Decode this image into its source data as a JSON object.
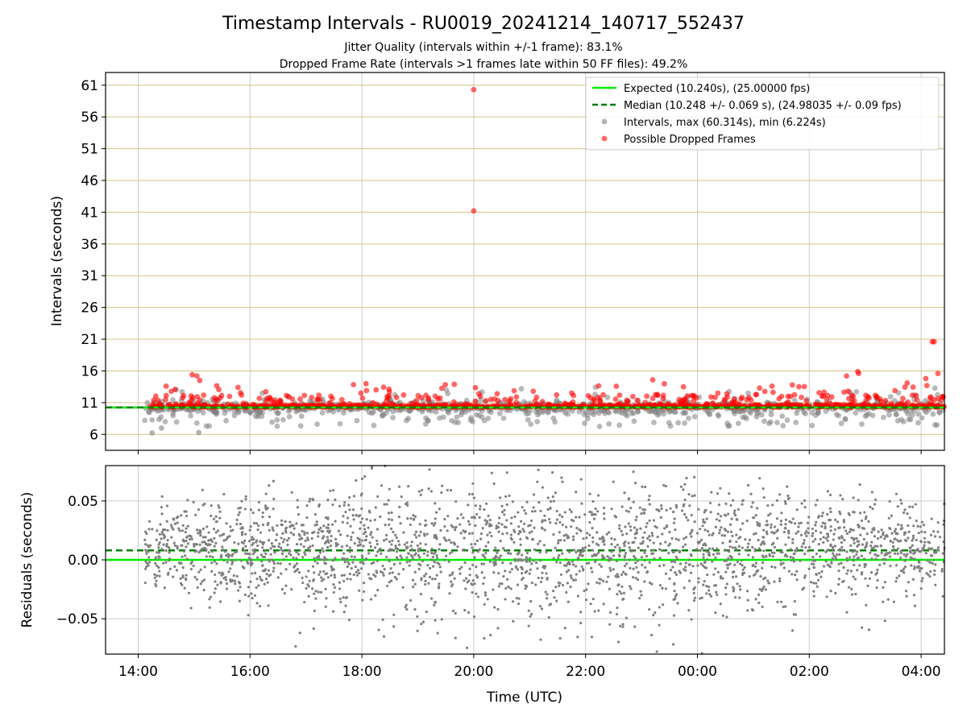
{
  "chart_data": [
    {
      "type": "scatter",
      "title": "Timestamp Intervals - RU0019_20241214_140717_552437",
      "subtitle_lines": [
        "Jitter Quality (intervals within +/-1 frame): 83.1%",
        "Dropped Frame Rate (intervals >1 frames late within 50 FF files): 49.2%"
      ],
      "ylabel": "Intervals (seconds)",
      "xlim": [
        "13:25",
        "04:25"
      ],
      "ylim": [
        3.5,
        63.0
      ],
      "yticks": [
        6,
        11,
        16,
        21,
        26,
        31,
        36,
        41,
        46,
        51,
        56,
        61
      ],
      "grid": "vertical at hourly ticks; horizontal golden lines at y ticks",
      "legend_position": "top-right",
      "legend": [
        {
          "label": "Expected (10.240s), (25.00000 fps)",
          "style": "solid line",
          "color": "#00ee00"
        },
        {
          "label": "Median (10.248 +/- 0.069 s), (24.98035 +/- 0.09 fps)",
          "style": "dashed line",
          "color": "#007f00"
        },
        {
          "label": "Intervals, max (60.314s), min (6.224s)",
          "style": "marker",
          "color": "#808080"
        },
        {
          "label": "Possible Dropped Frames",
          "style": "marker",
          "color": "#ff0000"
        }
      ],
      "series": [
        {
          "name": "Expected (10.240s), (25.00000 fps)",
          "kind": "hline",
          "y": 10.24
        },
        {
          "name": "Median (10.248 +/- 0.069 s), (24.98035 +/- 0.09 fps)",
          "kind": "hline",
          "y": 10.248
        },
        {
          "name": "Intervals, max (60.314s), min (6.224s)",
          "kind": "scatter",
          "x_range": [
            "14:07",
            "04:25"
          ],
          "y_center": 10.24,
          "y_spread": 1.2,
          "max": 60.314,
          "min": 6.224,
          "outliers": [
            {
              "x": "14:15",
              "y": 6.224
            },
            {
              "x": "15:05",
              "y": 6.3
            },
            {
              "x": "14:25",
              "y": 7.0
            }
          ]
        },
        {
          "name": "Possible Dropped Frames",
          "kind": "scatter",
          "x_range": [
            "14:12",
            "04:25"
          ],
          "y_center": 10.3,
          "y_spread": 1.0,
          "outliers": [
            {
              "x": "20:00",
              "y": 60.3
            },
            {
              "x": "20:00",
              "y": 41.2
            },
            {
              "x": "04:12",
              "y": 20.6
            },
            {
              "x": "04:14",
              "y": 20.6
            },
            {
              "x": "14:58",
              "y": 15.4
            },
            {
              "x": "15:03",
              "y": 15.2
            },
            {
              "x": "15:06",
              "y": 14.5
            },
            {
              "x": "23:12",
              "y": 14.6
            },
            {
              "x": "02:40",
              "y": 15.2
            },
            {
              "x": "02:52",
              "y": 15.9
            },
            {
              "x": "02:53",
              "y": 15.6
            },
            {
              "x": "04:18",
              "y": 15.6
            },
            {
              "x": "04:05",
              "y": 14.8
            },
            {
              "x": "14:30",
              "y": 13.6
            },
            {
              "x": "18:05",
              "y": 12.9
            },
            {
              "x": "23:45",
              "y": 13.5
            },
            {
              "x": "01:20",
              "y": 13.6
            },
            {
              "x": "03:45",
              "y": 14.1
            }
          ]
        }
      ]
    },
    {
      "type": "scatter",
      "xlabel": "Time (UTC)",
      "ylabel": "Residuals (seconds)",
      "xlim": [
        "13:25",
        "04:25"
      ],
      "ylim": [
        -0.08,
        0.08
      ],
      "yticks": [
        -0.05,
        0.0,
        0.05
      ],
      "ytick_labels": [
        "−0.05",
        "0.00",
        "0.05"
      ],
      "xticks": [
        "14:00",
        "16:00",
        "18:00",
        "20:00",
        "22:00",
        "00:00",
        "02:00",
        "04:00"
      ],
      "grid": true,
      "series": [
        {
          "name": "Expected (10.240s), (25.00000 fps)",
          "kind": "hline",
          "y": 0.0
        },
        {
          "name": "Median (10.248 +/- 0.069 s), (24.98035 +/- 0.09 fps)",
          "kind": "hline",
          "y": 0.008
        },
        {
          "name": "residuals",
          "kind": "scatter",
          "x_range": [
            "14:07",
            "04:25"
          ],
          "y_center": 0.008,
          "y_spread": 0.022,
          "clipped_at": [
            -0.08,
            0.08
          ]
        }
      ]
    }
  ],
  "colors": {
    "expected": "#00ee00",
    "median": "#007f00",
    "intervals": "#808080",
    "dropped": "#ff0000",
    "hgrid_top": "#d9c38a",
    "grid": "#cccccc"
  }
}
